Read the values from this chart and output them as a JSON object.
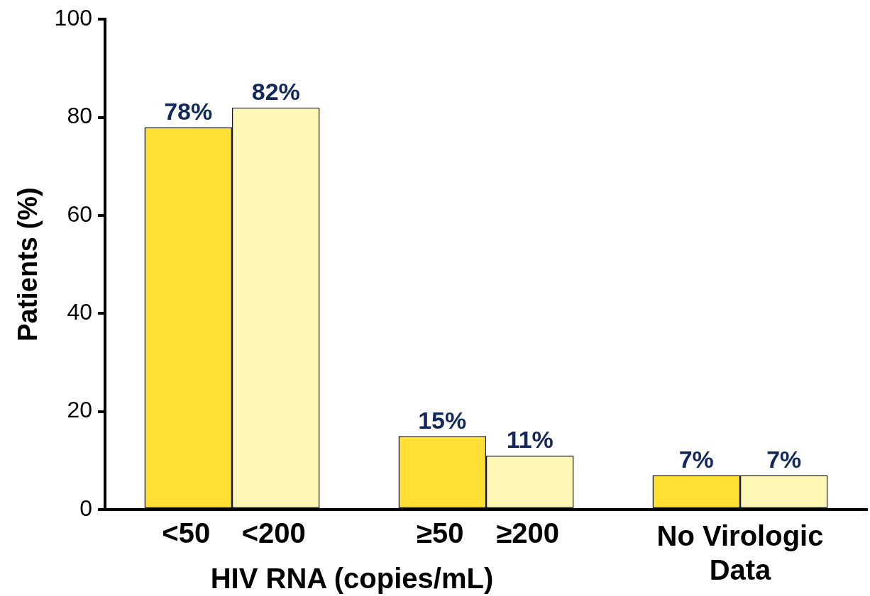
{
  "chart_data": {
    "type": "bar",
    "xlabel": "HIV RNA (copies/mL)",
    "ylabel": "Patients (%)",
    "categories": [
      null,
      null,
      "No Virologic Data"
    ],
    "series": [
      {
        "color": "#ffe033",
        "values": [
          78,
          15,
          7
        ],
        "value_labels": [
          "78%",
          "15%",
          "7%"
        ]
      },
      {
        "color": "#fff7b5",
        "values": [
          82,
          11,
          7
        ],
        "value_labels": [
          "82%",
          "11%",
          "7%"
        ]
      }
    ],
    "ylim": [
      0,
      100
    ],
    "yticks": [
      0,
      20,
      40,
      60,
      80,
      100
    ],
    "grid": false,
    "legend": false,
    "annotations": [
      "<50",
      "<200",
      "≥50",
      "≥200"
    ]
  }
}
